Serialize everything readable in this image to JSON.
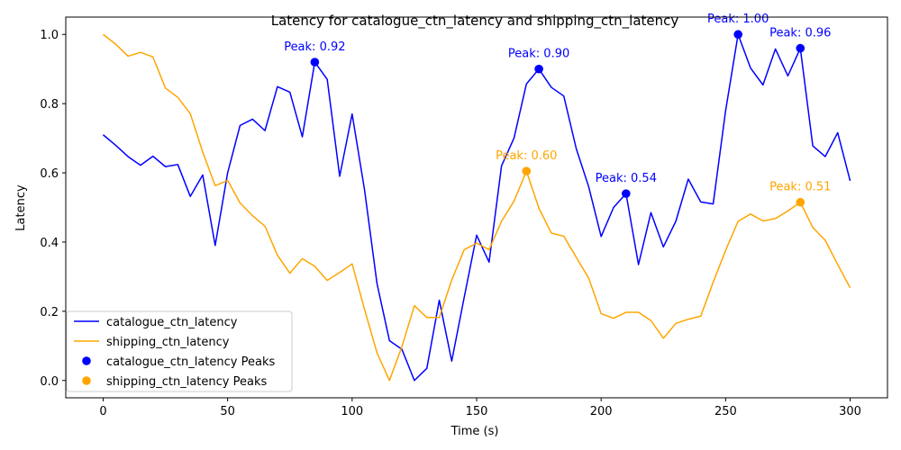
{
  "chart_data": {
    "type": "line",
    "title": "Latency for catalogue_ctn_latency and shipping_ctn_latency",
    "xlabel": "Time (s)",
    "ylabel": "Latency",
    "xlim": [
      -15,
      315
    ],
    "ylim": [
      -0.05,
      1.05
    ],
    "xticks": [
      0,
      50,
      100,
      150,
      200,
      250,
      300
    ],
    "yticks": [
      0.0,
      0.2,
      0.4,
      0.6,
      0.8,
      1.0
    ],
    "xtick_labels": [
      "0",
      "50",
      "100",
      "150",
      "200",
      "250",
      "300"
    ],
    "ytick_labels": [
      "0.0",
      "0.2",
      "0.4",
      "0.6",
      "0.8",
      "1.0"
    ],
    "grid": false,
    "legend_position": "lower-left",
    "x": [
      0,
      5,
      10,
      15,
      20,
      25,
      30,
      35,
      40,
      45,
      50,
      55,
      60,
      65,
      70,
      75,
      80,
      85,
      90,
      95,
      100,
      105,
      110,
      115,
      120,
      125,
      130,
      135,
      140,
      145,
      150,
      155,
      160,
      165,
      170,
      175,
      180,
      185,
      190,
      195,
      200,
      205,
      210,
      215,
      220,
      225,
      230,
      235,
      240,
      245,
      250,
      255,
      260,
      265,
      270,
      275,
      280,
      285,
      290,
      295,
      300
    ],
    "series": [
      {
        "name": "catalogue_ctn_latency",
        "color": "#0000ff",
        "values": [
          0.71,
          0.68,
          0.647,
          0.622,
          0.648,
          0.618,
          0.624,
          0.532,
          0.594,
          0.39,
          0.6,
          0.737,
          0.755,
          0.722,
          0.849,
          0.833,
          0.704,
          0.92,
          0.87,
          0.59,
          0.77,
          0.55,
          0.28,
          0.115,
          0.09,
          0.0,
          0.035,
          0.232,
          0.056,
          0.24,
          0.42,
          0.342,
          0.62,
          0.7,
          0.857,
          0.9,
          0.847,
          0.822,
          0.67,
          0.56,
          0.416,
          0.5,
          0.54,
          0.335,
          0.485,
          0.386,
          0.46,
          0.582,
          0.516,
          0.51,
          0.78,
          1.0,
          0.903,
          0.854,
          0.958,
          0.88,
          0.96,
          0.678,
          0.647,
          0.716,
          0.577
        ]
      },
      {
        "name": "shipping_ctn_latency",
        "color": "#ffa500",
        "values": [
          1.0,
          0.972,
          0.937,
          0.948,
          0.935,
          0.845,
          0.818,
          0.771,
          0.66,
          0.563,
          0.578,
          0.513,
          0.476,
          0.446,
          0.362,
          0.31,
          0.352,
          0.33,
          0.289,
          0.312,
          0.337,
          0.205,
          0.08,
          0.0,
          0.098,
          0.216,
          0.182,
          0.182,
          0.29,
          0.378,
          0.397,
          0.378,
          0.46,
          0.518,
          0.605,
          0.498,
          0.426,
          0.417,
          0.356,
          0.296,
          0.193,
          0.18,
          0.197,
          0.197,
          0.173,
          0.122,
          0.165,
          0.177,
          0.186,
          0.284,
          0.376,
          0.46,
          0.481,
          0.461,
          0.468,
          0.49,
          0.515,
          0.442,
          0.405,
          0.335,
          0.268
        ]
      }
    ],
    "peaks": [
      {
        "series": "catalogue_ctn_latency",
        "x": 85,
        "y": 0.92,
        "label": "Peak: 0.92"
      },
      {
        "series": "catalogue_ctn_latency",
        "x": 175,
        "y": 0.9,
        "label": "Peak: 0.90"
      },
      {
        "series": "catalogue_ctn_latency",
        "x": 210,
        "y": 0.54,
        "label": "Peak: 0.54"
      },
      {
        "series": "catalogue_ctn_latency",
        "x": 255,
        "y": 1.0,
        "label": "Peak: 1.00"
      },
      {
        "series": "catalogue_ctn_latency",
        "x": 280,
        "y": 0.96,
        "label": "Peak: 0.96"
      },
      {
        "series": "shipping_ctn_latency",
        "x": 170,
        "y": 0.605,
        "label": "Peak: 0.60"
      },
      {
        "series": "shipping_ctn_latency",
        "x": 280,
        "y": 0.515,
        "label": "Peak: 0.51"
      }
    ],
    "legend": [
      {
        "label": "catalogue_ctn_latency",
        "kind": "line",
        "color": "#0000ff"
      },
      {
        "label": "shipping_ctn_latency",
        "kind": "line",
        "color": "#ffa500"
      },
      {
        "label": "catalogue_ctn_latency Peaks",
        "kind": "marker",
        "color": "#0000ff"
      },
      {
        "label": "shipping_ctn_latency Peaks",
        "kind": "marker",
        "color": "#ffa500"
      }
    ]
  }
}
